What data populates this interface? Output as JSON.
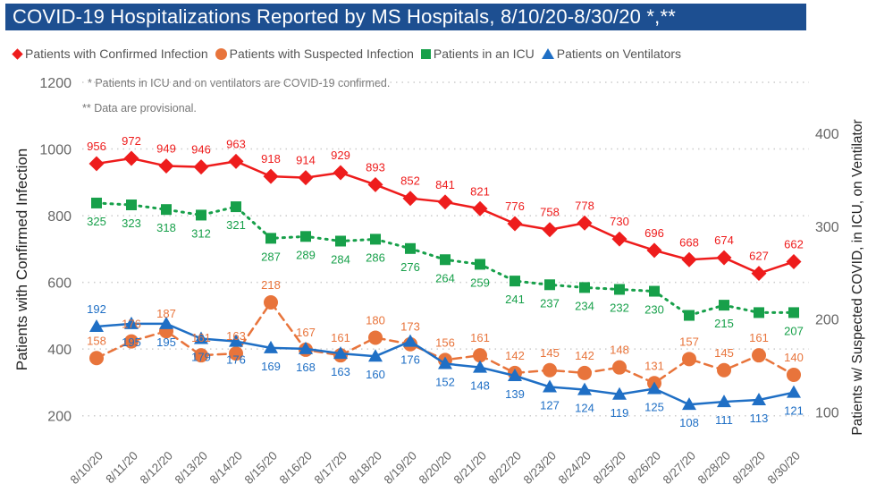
{
  "title": "COVID-19 Hospitalizations Reported by MS Hospitals, 8/10/20-8/30/20 *,**",
  "chart_data": {
    "type": "line",
    "title": "COVID-19 Hospitalizations Reported by MS Hospitals, 8/10/20-8/30/20 *,**",
    "notes": [
      "* Patients in ICU and on ventilators are COVID-19 confirmed.",
      "** Data are provisional."
    ],
    "x": [
      "8/10/20",
      "8/11/20",
      "8/12/20",
      "8/13/20",
      "8/14/20",
      "8/15/20",
      "8/16/20",
      "8/17/20",
      "8/18/20",
      "8/19/20",
      "8/20/20",
      "8/21/20",
      "8/22/20",
      "8/23/20",
      "8/24/20",
      "8/25/20",
      "8/26/20",
      "8/27/20",
      "8/28/20",
      "8/29/20",
      "8/30/20"
    ],
    "ylabel": "Patients with Confirmed Infection",
    "y2label": "Patients w/ Suspected COVID, in ICU, on Ventilator",
    "ylim": [
      100,
      1200
    ],
    "yticks": [
      200,
      400,
      600,
      800,
      1000,
      1200
    ],
    "y2lim": [
      60,
      455
    ],
    "y2ticks": [
      100,
      200,
      300,
      400
    ],
    "grid": true,
    "legend_placement": "top",
    "series": [
      {
        "name": "Patients with Confirmed Infection",
        "axis": "left",
        "color": "#ee1c1c",
        "marker": "diamond",
        "dash": "solid",
        "label_pos": "above",
        "values": [
          956,
          972,
          949,
          946,
          963,
          918,
          914,
          929,
          893,
          852,
          841,
          821,
          776,
          758,
          778,
          730,
          696,
          668,
          674,
          627,
          662
        ],
        "labels": [
          "956",
          "972",
          "949",
          "946",
          "963",
          "918",
          "914",
          "929",
          "893",
          "852",
          "841",
          "821",
          "776",
          "758",
          "778",
          "730",
          "696",
          "668",
          "674",
          "627",
          "662"
        ]
      },
      {
        "name": "Patients with Suspected Infection",
        "axis": "right",
        "color": "#e8743b",
        "marker": "circle",
        "dash": "dashed",
        "label_pos": "above",
        "values": [
          158,
          176,
          187,
          161,
          163,
          218,
          167,
          161,
          180,
          173,
          156,
          161,
          142,
          145,
          142,
          148,
          131,
          157,
          145,
          161,
          140
        ],
        "labels": [
          "158",
          "176",
          "187",
          "161",
          "163",
          "218",
          "167",
          "161",
          "180",
          "173",
          "156",
          "161",
          "142",
          "145",
          "142",
          "148",
          "131",
          "157",
          "145",
          "161",
          "140"
        ]
      },
      {
        "name": "Patients in an ICU",
        "axis": "right",
        "color": "#17a04a",
        "marker": "square",
        "dash": "dotted",
        "label_pos": "below",
        "values": [
          325,
          323,
          318,
          312,
          321,
          287,
          289,
          284,
          286,
          276,
          264,
          259,
          241,
          237,
          234,
          232,
          230,
          204,
          215,
          207,
          207
        ],
        "labels": [
          "325",
          "323",
          "318",
          "312",
          "321",
          "287",
          "289",
          "284",
          "286",
          "276",
          "264",
          "259",
          "241",
          "237",
          "234",
          "232",
          "230",
          "",
          "215",
          "",
          "207"
        ]
      },
      {
        "name": "Patients on Ventilators",
        "axis": "right",
        "color": "#1f6fc5",
        "marker": "triangle",
        "dash": "solid",
        "label_pos": "below",
        "values": [
          192,
          195,
          195,
          179,
          176,
          169,
          168,
          163,
          160,
          176,
          152,
          148,
          139,
          127,
          124,
          119,
          125,
          108,
          111,
          113,
          121
        ],
        "labels": [
          "192",
          "195",
          "195",
          "179",
          "176",
          "169",
          "168",
          "163",
          "160",
          "176",
          "152",
          "148",
          "139",
          "127",
          "124",
          "119",
          "125",
          "108",
          "111",
          "113",
          "121"
        ]
      }
    ]
  }
}
